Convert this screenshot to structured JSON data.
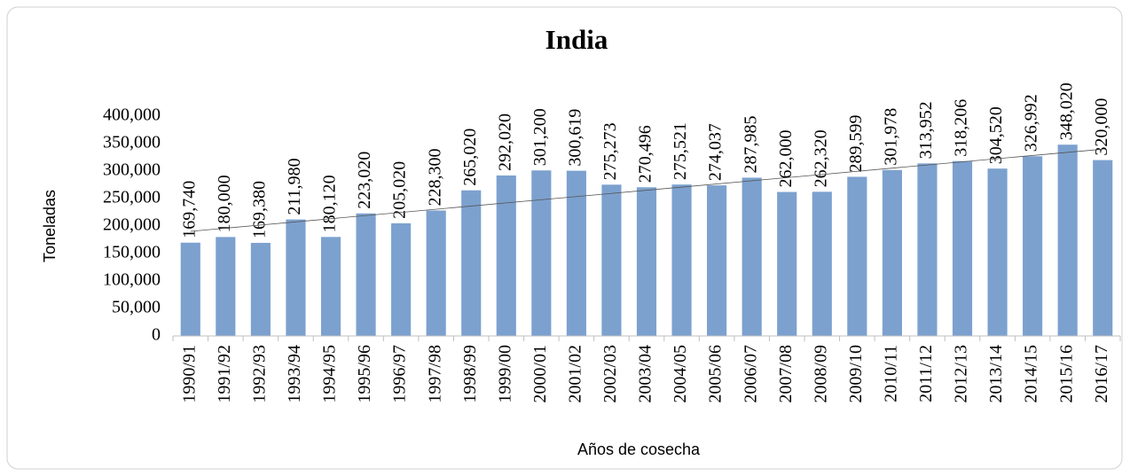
{
  "chart_data": {
    "type": "bar",
    "title": "India",
    "x_label": "Años de cosecha",
    "y_label": "Toneladas",
    "categories": [
      "1990/91",
      "1991/92",
      "1992/93",
      "1993/94",
      "1994/95",
      "1995/96",
      "1996/97",
      "1997/98",
      "1998/99",
      "1999/00",
      "2000/01",
      "2001/02",
      "2002/03",
      "2003/04",
      "2004/05",
      "2005/06",
      "2006/07",
      "2007/08",
      "2008/09",
      "2009/10",
      "2010/11",
      "2011/12",
      "2012/13",
      "2013/14",
      "2014/15",
      "2015/16",
      "2016/17"
    ],
    "values": [
      169740,
      180000,
      169380,
      211980,
      180120,
      223020,
      205020,
      228300,
      265020,
      292020,
      301200,
      300619,
      275273,
      270496,
      275521,
      274037,
      287985,
      262000,
      262320,
      289599,
      301978,
      313952,
      318206,
      304520,
      326992,
      348020,
      320000
    ],
    "value_labels": [
      "169,740",
      "180,000",
      "169,380",
      "211,980",
      "180,120",
      "223,020",
      "205,020",
      "228,300",
      "265,020",
      "292,020",
      "301,200",
      "300,619",
      "275,273",
      "270,496",
      "275,521",
      "274,037",
      "287,985",
      "262,000",
      "262,320",
      "289,599",
      "301,978",
      "313,952",
      "318,206",
      "304,520",
      "326,992",
      "348,020",
      "320,000"
    ],
    "color": "#7ca1cf",
    "ylim": [
      0,
      400000
    ],
    "yticks": [
      0,
      {
        "value": 50000,
        "label": "50,000"
      },
      {
        "value": 100000,
        "label": "100,000"
      },
      {
        "value": 150000,
        "label": "150,000"
      },
      {
        "value": 200000,
        "label": "200,000"
      },
      {
        "value": 250000,
        "label": "250,000"
      },
      {
        "value": 300000,
        "label": "300,000"
      },
      {
        "value": 350000,
        "label": "350,000"
      },
      {
        "value": 400000,
        "label": "400,000"
      }
    ],
    "grid": false,
    "trendline": "linear"
  }
}
